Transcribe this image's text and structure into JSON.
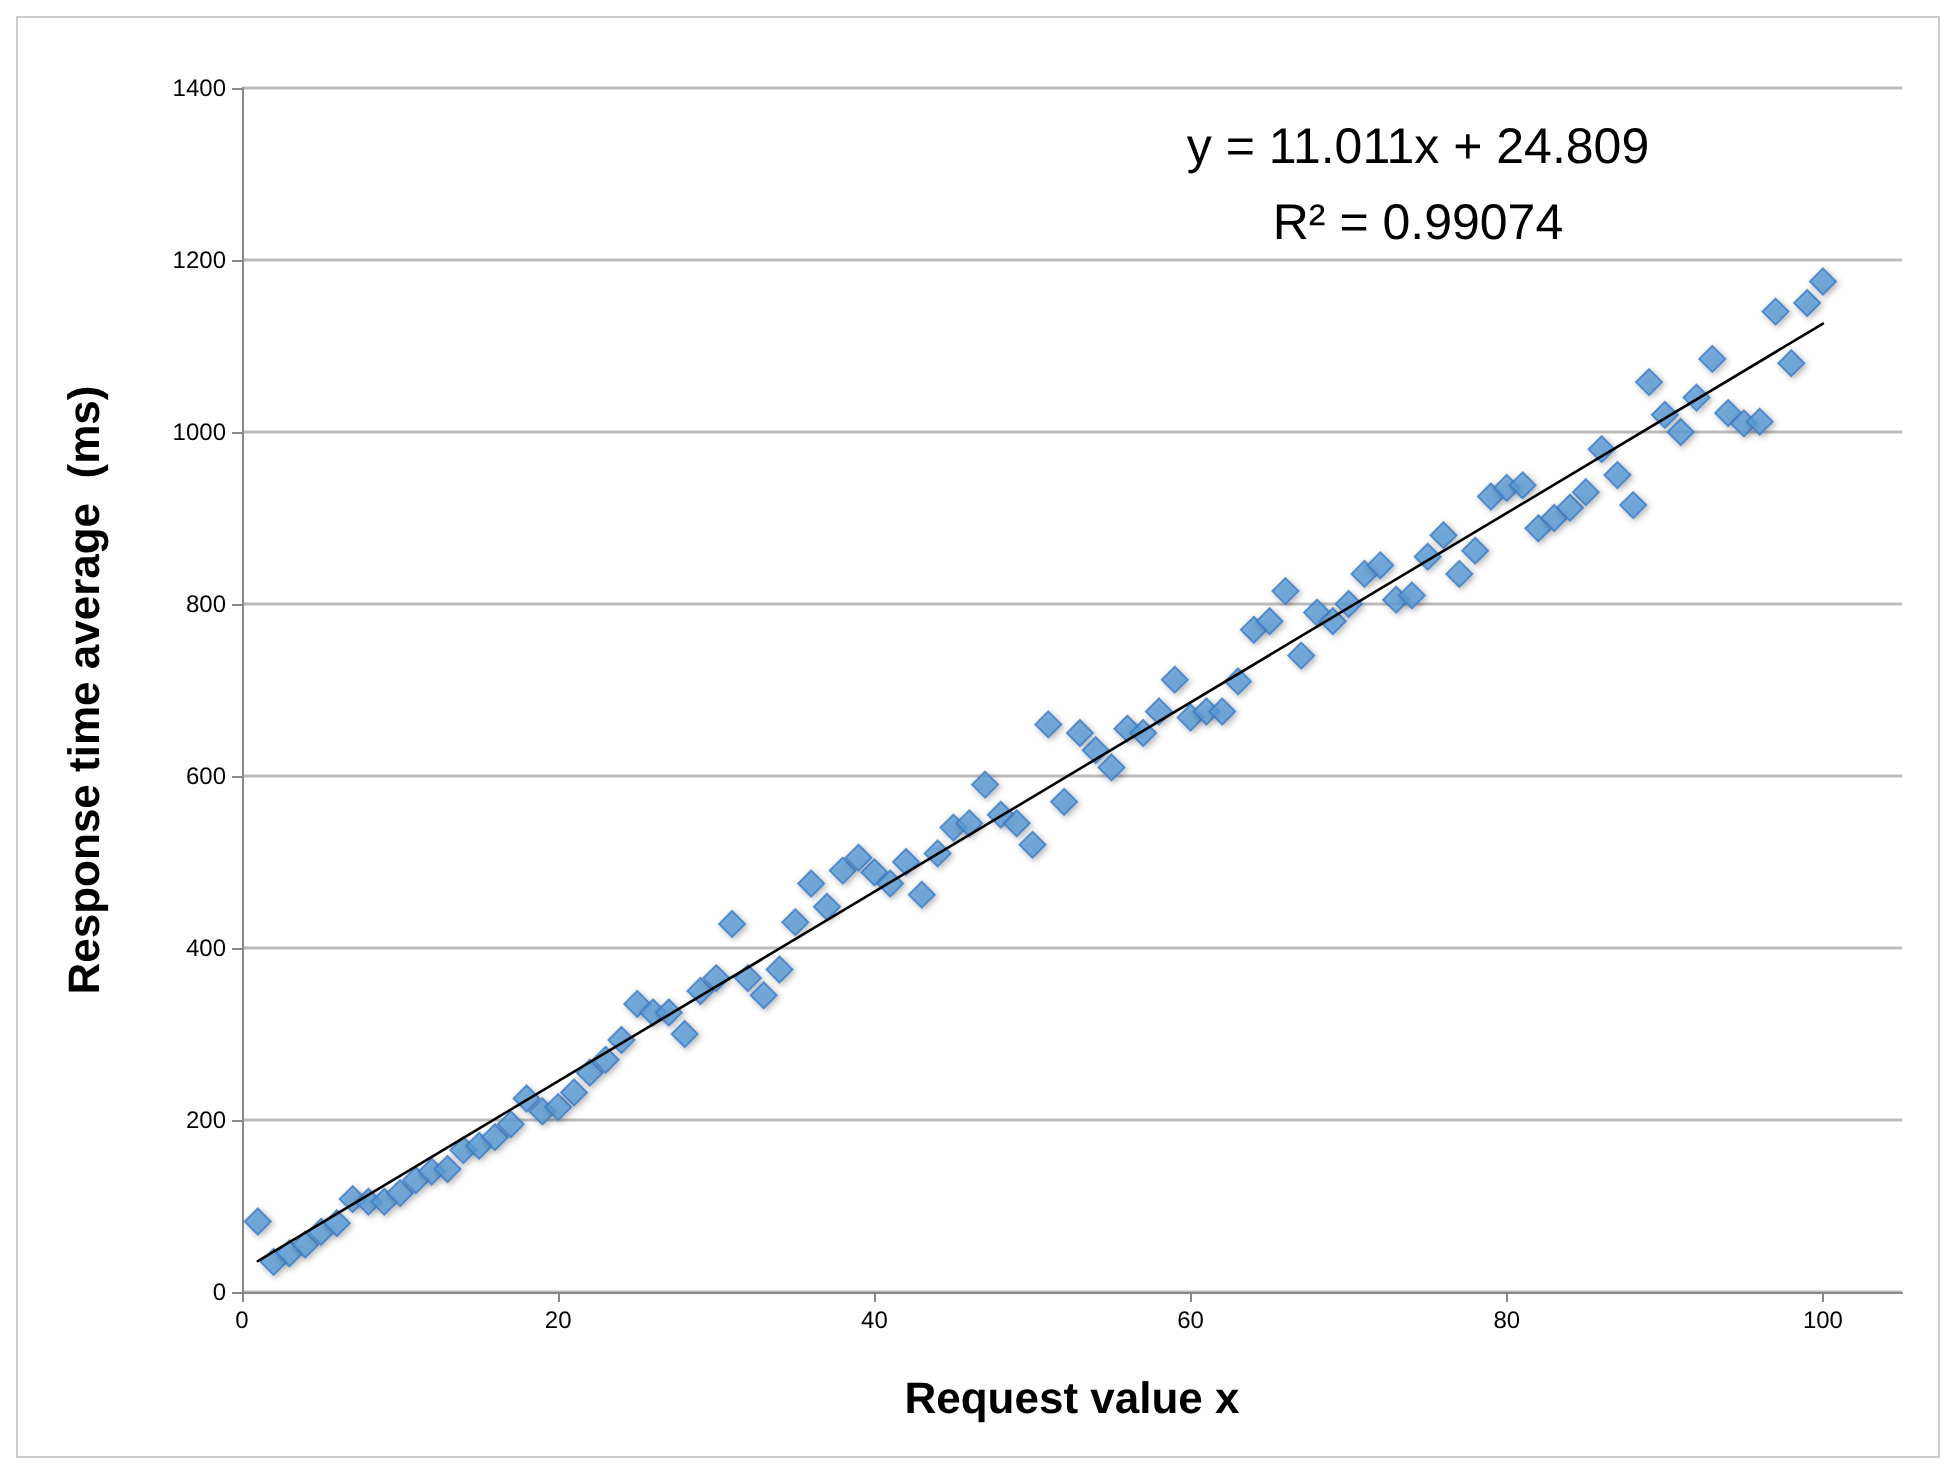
{
  "chart_data": {
    "type": "scatter",
    "xlabel": "Request value x",
    "ylabel": "Response time average  (ms)",
    "xlim": [
      0,
      105
    ],
    "xticks": [
      0,
      20,
      40,
      60,
      80,
      100
    ],
    "ylim": [
      0,
      1400
    ],
    "yticks": [
      0,
      200,
      400,
      600,
      800,
      1000,
      1200,
      1400
    ],
    "grid": "y",
    "marker": "diamond",
    "annotations": [
      "y = 11.011x + 24.809",
      "R² = 0.99074"
    ],
    "series": [
      {
        "color": "#5b9bd5",
        "x": [
          1,
          2,
          3,
          4,
          5,
          6,
          7,
          8,
          9,
          10,
          11,
          12,
          13,
          14,
          15,
          16,
          17,
          18,
          19,
          20,
          21,
          22,
          23,
          24,
          25,
          26,
          27,
          28,
          29,
          30,
          31,
          32,
          33,
          34,
          35,
          36,
          37,
          38,
          39,
          40,
          41,
          42,
          43,
          44,
          45,
          46,
          47,
          48,
          49,
          50,
          51,
          52,
          53,
          54,
          55,
          56,
          57,
          58,
          59,
          60,
          61,
          62,
          63,
          64,
          65,
          66,
          67,
          68,
          69,
          70,
          71,
          72,
          73,
          74,
          75,
          76,
          77,
          78,
          79,
          80,
          81,
          82,
          83,
          84,
          85,
          86,
          87,
          88,
          89,
          90,
          91,
          92,
          93,
          94,
          95,
          96,
          97,
          98,
          99,
          100
        ],
        "values": [
          82,
          35,
          45,
          55,
          70,
          80,
          108,
          105,
          105,
          115,
          130,
          140,
          143,
          165,
          170,
          180,
          195,
          225,
          210,
          215,
          232,
          255,
          270,
          293,
          335,
          325,
          325,
          300,
          350,
          365,
          428,
          365,
          345,
          375,
          430,
          475,
          448,
          490,
          505,
          488,
          475,
          500,
          462,
          510,
          540,
          545,
          590,
          555,
          545,
          520,
          660,
          570,
          650,
          630,
          610,
          655,
          650,
          675,
          712,
          668,
          675,
          675,
          710,
          770,
          780,
          815,
          740,
          790,
          780,
          800,
          835,
          845,
          805,
          810,
          855,
          880,
          835,
          862,
          925,
          935,
          938,
          888,
          900,
          912,
          930,
          980,
          950,
          915,
          1058,
          1020,
          1000,
          1040,
          1085,
          1022,
          1010,
          1012,
          1140,
          1080,
          1150,
          1175
        ]
      },
      {
        "type": "line",
        "color": "#000000",
        "marker": "none",
        "line_style": "solid",
        "x": [
          1,
          100
        ],
        "values": [
          36,
          1126
        ]
      }
    ]
  }
}
